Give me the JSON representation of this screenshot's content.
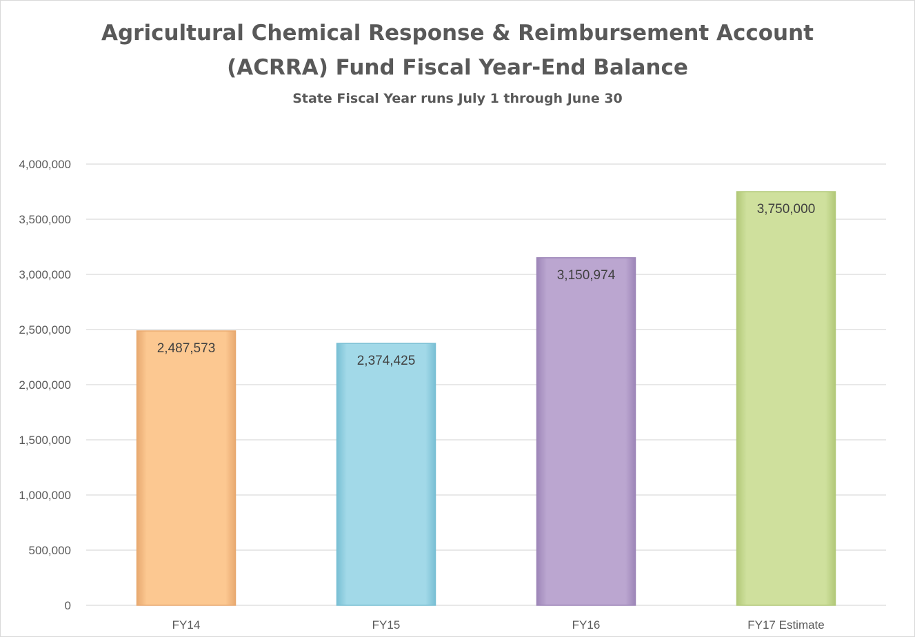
{
  "chart_data": {
    "type": "bar",
    "title_line1": "Agricultural Chemical Response & Reimbursement Account",
    "title_line2": "(ACRRA) Fund Fiscal Year-End Balance",
    "subtitle": "State Fiscal Year runs July 1 through June 30",
    "categories": [
      "FY14",
      "FY15",
      "FY16",
      "FY17 Estimate"
    ],
    "values": [
      2487573,
      2374425,
      3150974,
      3750000
    ],
    "data_labels": [
      "2,487,573",
      "2,374,425",
      "3,150,974",
      "3,750,000"
    ],
    "colors": [
      "#fcc891",
      "#a2d9e8",
      "#bba6d0",
      "#cfe09d"
    ],
    "edge_colors": [
      "#e8a970",
      "#79bfd4",
      "#9d86b8",
      "#b2c978"
    ],
    "y_ticks": [
      0,
      500000,
      1000000,
      1500000,
      2000000,
      2500000,
      3000000,
      3500000,
      4000000
    ],
    "y_tick_labels": [
      "0",
      "500,000",
      "1,000,000",
      "1,500,000",
      "2,000,000",
      "2,500,000",
      "3,000,000",
      "3,500,000",
      "4,000,000"
    ],
    "ylim": [
      0,
      4000000
    ],
    "xlabel": "",
    "ylabel": "",
    "grid": true,
    "gridline_color": "#d9d9d9"
  }
}
